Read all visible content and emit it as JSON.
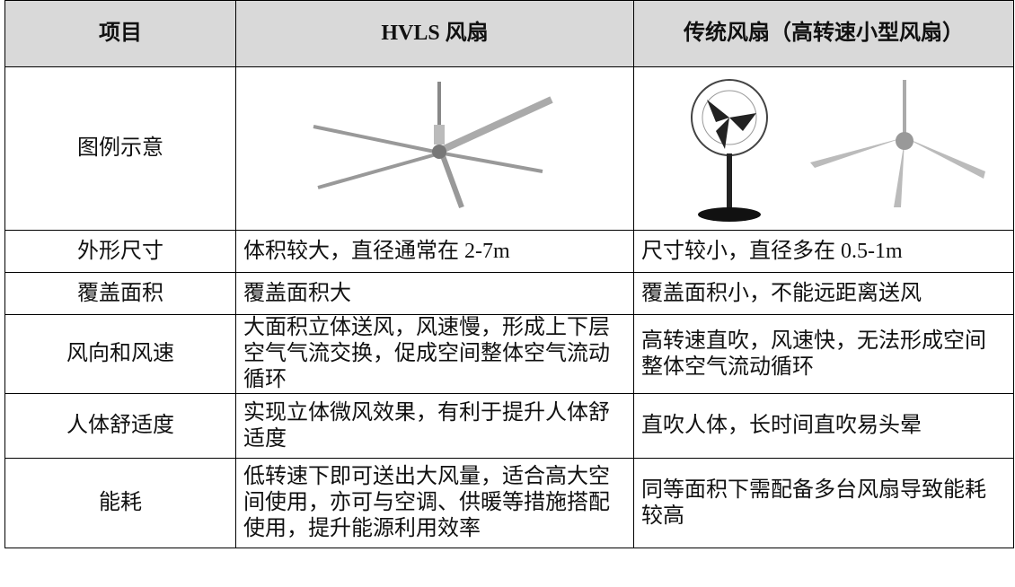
{
  "table": {
    "header": [
      "项目",
      "HVLS 风扇",
      "传统风扇（高转速小型风扇）"
    ],
    "rows": [
      [
        "图例示意"
      ],
      [
        "外形尺寸",
        "体积较大，直径通常在 2-7m",
        "尺寸较小，直径多在 0.5-1m"
      ],
      [
        "覆盖面积",
        "覆盖面积大",
        "覆盖面积小，不能远距离送风"
      ],
      [
        "风向和风速",
        "大面积立体送风，风速慢，形成上下层空气气流交换，促成空间整体空气流动循环",
        "高转速直吹，风速快，无法形成空间整体空气流动循环"
      ],
      [
        "人体舒适度",
        "实现立体微风效果，有利于提升人体舒适度",
        "直吹人体，长时间直吹易头晕"
      ],
      [
        "能耗",
        "低转速下即可送出大风量，适合高大空间使用，亦可与空调、供暖等措施搭配使用，提升能源利用效率",
        "同等面积下需配备多台风扇导致能耗较高"
      ]
    ]
  }
}
